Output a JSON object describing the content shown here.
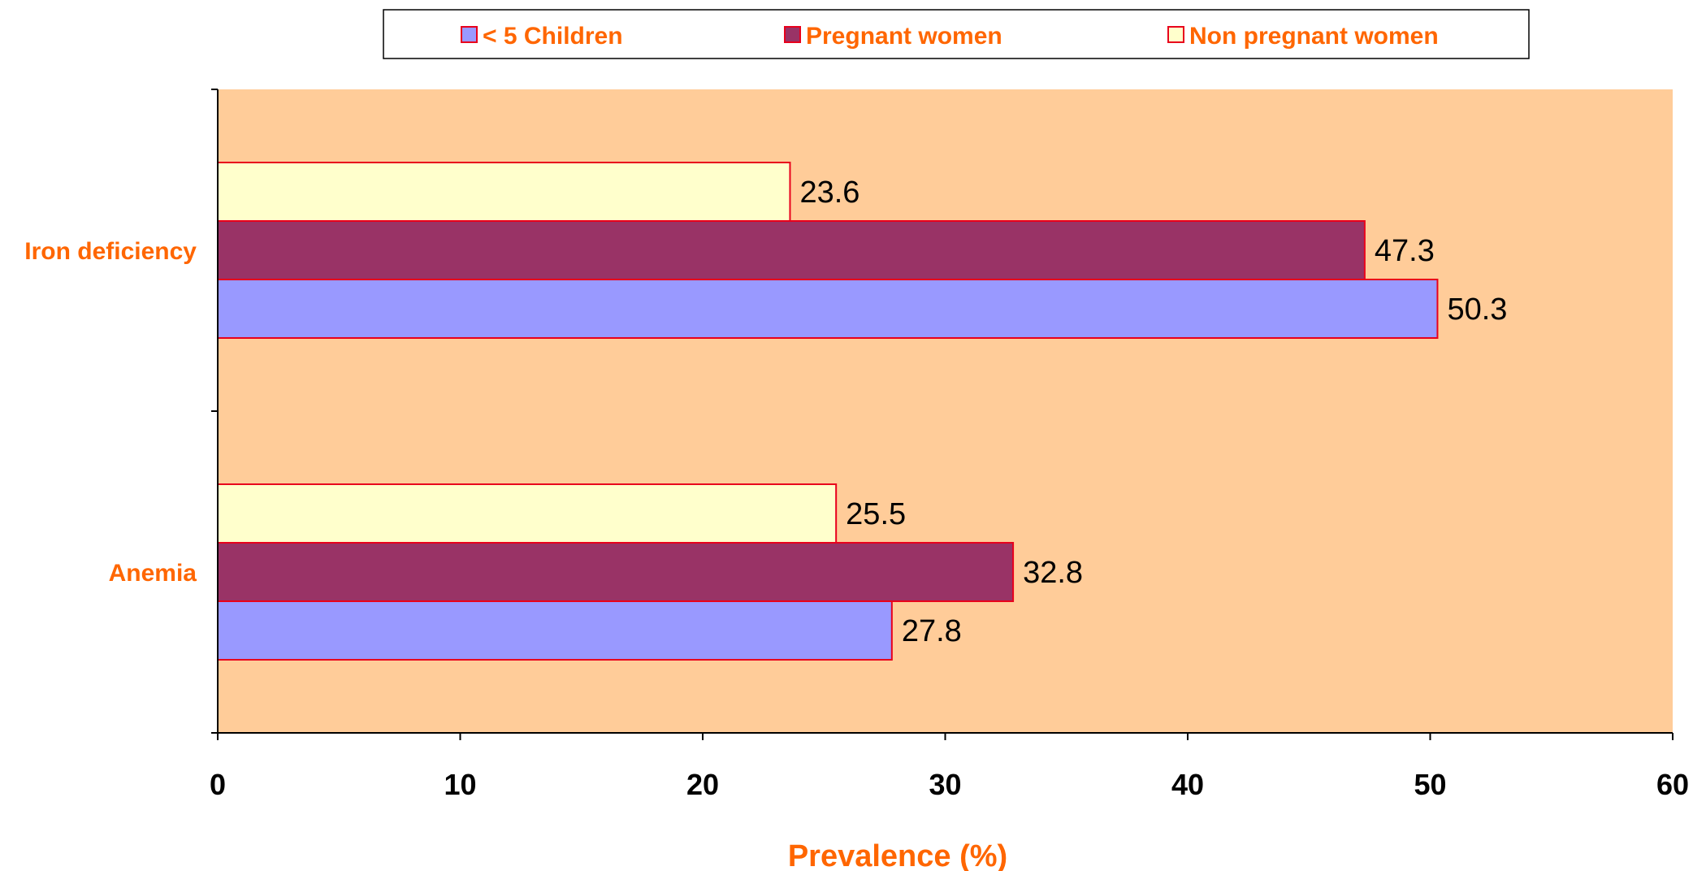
{
  "colors": {
    "plot_bg": "#FFCC99",
    "bar_border": "#E8001C",
    "label_orange": "#FF6600",
    "axis": "#000000"
  },
  "chart_data": {
    "type": "bar",
    "orientation": "horizontal",
    "categories": [
      "Anemia",
      "Iron deficiency"
    ],
    "series": [
      {
        "name": "< 5 Children",
        "color": "#9999FF",
        "values": [
          27.8,
          50.3
        ]
      },
      {
        "name": "Pregnant women",
        "color": "#993366",
        "values": [
          32.8,
          47.3
        ]
      },
      {
        "name": "Non pregnant women",
        "color": "#FFFFCC",
        "values": [
          25.5,
          23.6
        ]
      }
    ],
    "xlabel": "Prevalence (%)",
    "ylabel": "",
    "xlim": [
      0,
      60
    ],
    "xticks": [
      0,
      10,
      20,
      30,
      40,
      50,
      60
    ],
    "grid": false,
    "legend_position": "top"
  }
}
